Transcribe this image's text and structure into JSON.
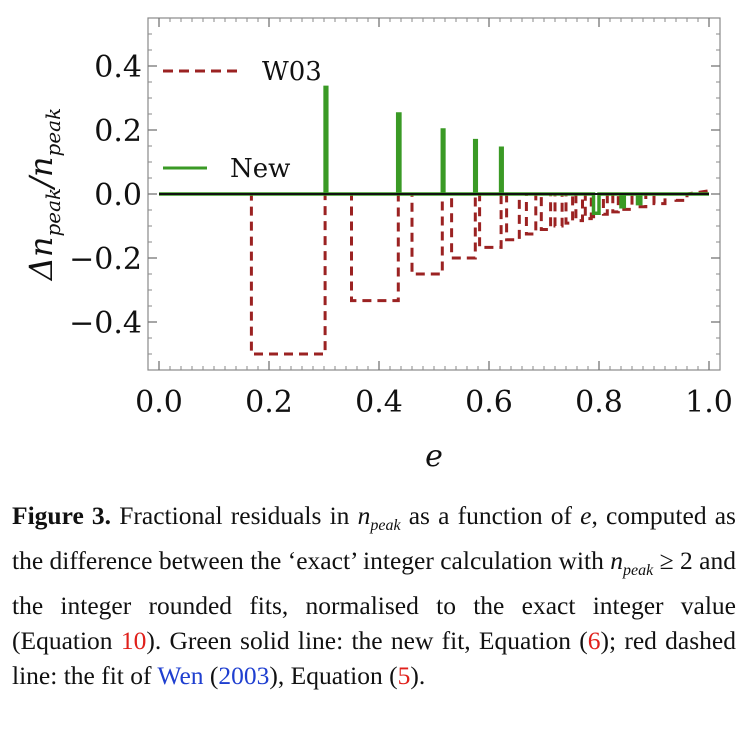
{
  "chart_data": {
    "type": "line",
    "xlabel": "e",
    "ylabel_main": "Δn",
    "ylabel_sub": "peak",
    "ylabel_slash": "/n",
    "ylabel_sub2": "peak",
    "xlim": [
      -0.02,
      1.02
    ],
    "ylim": [
      -0.55,
      0.55
    ],
    "xticks": [
      0.0,
      0.2,
      0.4,
      0.6,
      0.8,
      1.0
    ],
    "xtick_labels": [
      "0.0",
      "0.2",
      "0.4",
      "0.6",
      "0.8",
      "1.0"
    ],
    "yticks": [
      0.4,
      0.2,
      0.0,
      -0.2,
      -0.4
    ],
    "ytick_labels": [
      "0.4",
      "0.2",
      "0.0",
      "−0.2",
      "−0.4"
    ],
    "series": [
      {
        "name": "W03",
        "style": "dashed",
        "color": "#9b2222",
        "x": [
          0.0,
          0.168,
          0.168,
          0.302,
          0.302,
          0.35,
          0.35,
          0.435,
          0.435,
          0.46,
          0.46,
          0.515,
          0.515,
          0.532,
          0.532,
          0.575,
          0.575,
          0.583,
          0.583,
          0.622,
          0.622,
          0.632,
          0.632,
          0.655,
          0.655,
          0.668,
          0.668,
          0.685,
          0.685,
          0.695,
          0.695,
          0.712,
          0.712,
          0.72,
          0.72,
          0.733,
          0.733,
          0.74,
          0.74,
          0.752,
          0.752,
          0.758,
          0.758,
          0.77,
          0.77,
          0.775,
          0.775,
          0.786,
          0.786,
          0.79,
          0.79,
          0.8,
          0.8,
          0.808,
          0.808,
          0.815,
          0.815,
          0.825,
          0.825,
          0.835,
          0.835,
          0.845,
          0.845,
          0.86,
          0.86,
          0.87,
          0.87,
          0.885,
          0.885,
          0.9,
          0.9,
          0.92,
          0.92,
          0.94,
          0.94,
          0.96,
          0.96,
          1.0
        ],
        "y": [
          0.0,
          0.0,
          -0.5,
          -0.5,
          0.0,
          0.0,
          -0.333,
          -0.333,
          0.0,
          0.0,
          -0.25,
          -0.25,
          0.0,
          0.0,
          -0.2,
          -0.2,
          0.0,
          0.0,
          -0.167,
          -0.167,
          0.0,
          0.0,
          -0.143,
          -0.143,
          0.0,
          0.0,
          -0.125,
          -0.125,
          0.0,
          0.0,
          -0.111,
          -0.111,
          0.0,
          0.0,
          -0.1,
          -0.1,
          0.0,
          0.0,
          -0.091,
          -0.091,
          0.0,
          0.0,
          -0.083,
          -0.083,
          0.0,
          0.0,
          -0.077,
          -0.077,
          0.0,
          0.0,
          -0.071,
          -0.071,
          0.0,
          0.0,
          -0.063,
          -0.063,
          0.0,
          0.0,
          -0.056,
          -0.056,
          0.0,
          0.0,
          -0.048,
          -0.048,
          0.0,
          0.0,
          -0.04,
          -0.04,
          0.0,
          0.0,
          -0.03,
          -0.03,
          0.0,
          0.0,
          -0.02,
          -0.02,
          0.0,
          0.01
        ]
      },
      {
        "name": "New",
        "style": "solid",
        "color": "#3a9a25",
        "x": [
          0.0,
          0.302,
          0.302,
          0.305,
          0.305,
          0.434,
          0.434,
          0.438,
          0.438,
          0.515,
          0.515,
          0.518,
          0.518,
          0.574,
          0.574,
          0.577,
          0.577,
          0.621,
          0.621,
          0.624,
          0.624,
          0.79,
          0.79,
          0.8,
          0.8,
          0.84,
          0.84,
          0.846,
          0.846,
          0.87,
          0.87,
          0.876,
          0.876,
          1.0
        ],
        "y": [
          0.0,
          0.0,
          0.333,
          0.333,
          0.0,
          0.0,
          0.25,
          0.25,
          0.0,
          0.0,
          0.2,
          0.2,
          0.0,
          0.0,
          0.167,
          0.167,
          0.0,
          0.0,
          0.143,
          0.143,
          0.0,
          0.0,
          -0.06,
          -0.06,
          0.0,
          0.0,
          -0.04,
          -0.04,
          0.0,
          0.0,
          -0.03,
          -0.03,
          0.0,
          0.0
        ]
      }
    ],
    "legend": [
      {
        "label": "W03",
        "style": "dashed",
        "color": "#9b2222"
      },
      {
        "label": "New",
        "style": "solid",
        "color": "#3a9a25"
      }
    ]
  },
  "caption": {
    "label": "Figure 3.",
    "t1": " Fractional residuals in ",
    "npeak_n": "n",
    "npeak_sub": "peak",
    "t2": " as a function of ",
    "e": "e",
    "t3": ", computed as the difference between the ‘exact’ integer calculation with ",
    "t4": " ≥ 2 and the integer rounded fits, normalised to the exact integer value (Equation ",
    "ref_eq10": "10",
    "t5": "). Green solid line: the new fit, Equation (",
    "ref_eq6": "6",
    "t6": "); red dashed line: the fit of ",
    "ref_wen": "Wen",
    "t7": " (",
    "ref_year": "2003",
    "t8": "), Equation (",
    "ref_eq5": "5",
    "t9": ")."
  }
}
